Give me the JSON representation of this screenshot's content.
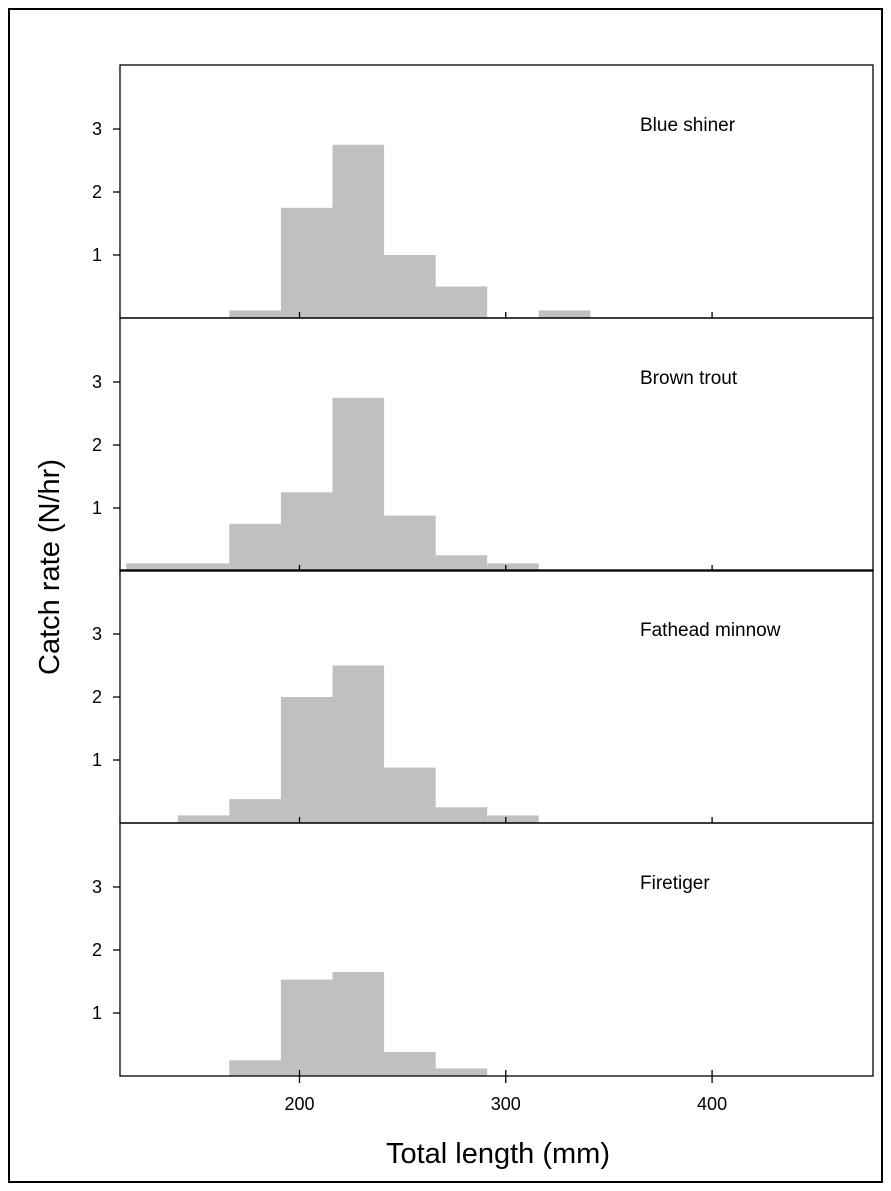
{
  "chart_data": {
    "type": "bar",
    "layout": "stacked-panels",
    "xlabel": "Total length (mm)",
    "ylabel": "Catch rate (N/hr)",
    "xlim": [
      113,
      478
    ],
    "ylim": [
      0,
      4
    ],
    "x_ticks": [
      200,
      300,
      400
    ],
    "y_ticks": [
      1,
      2,
      3
    ],
    "bin_width": 25,
    "bar_color": "#c0c0c0",
    "panels": [
      {
        "name": "Blue shiner",
        "bins": [
          {
            "x0": 166,
            "x1": 191,
            "value": 0.12
          },
          {
            "x0": 191,
            "x1": 216,
            "value": 1.75
          },
          {
            "x0": 216,
            "x1": 241,
            "value": 2.75
          },
          {
            "x0": 241,
            "x1": 266,
            "value": 1.0
          },
          {
            "x0": 266,
            "x1": 291,
            "value": 0.5
          },
          {
            "x0": 316,
            "x1": 341,
            "value": 0.12
          }
        ]
      },
      {
        "name": "Brown trout",
        "bins": [
          {
            "x0": 116,
            "x1": 141,
            "value": 0.12
          },
          {
            "x0": 141,
            "x1": 166,
            "value": 0.12
          },
          {
            "x0": 166,
            "x1": 191,
            "value": 0.75
          },
          {
            "x0": 191,
            "x1": 216,
            "value": 1.25
          },
          {
            "x0": 216,
            "x1": 241,
            "value": 2.75
          },
          {
            "x0": 241,
            "x1": 266,
            "value": 0.88
          },
          {
            "x0": 266,
            "x1": 291,
            "value": 0.25
          },
          {
            "x0": 291,
            "x1": 316,
            "value": 0.12
          }
        ]
      },
      {
        "name": "Fathead minnow",
        "bins": [
          {
            "x0": 141,
            "x1": 166,
            "value": 0.12
          },
          {
            "x0": 166,
            "x1": 191,
            "value": 0.38
          },
          {
            "x0": 191,
            "x1": 216,
            "value": 2.0
          },
          {
            "x0": 216,
            "x1": 241,
            "value": 2.5
          },
          {
            "x0": 241,
            "x1": 266,
            "value": 0.88
          },
          {
            "x0": 266,
            "x1": 291,
            "value": 0.25
          },
          {
            "x0": 291,
            "x1": 316,
            "value": 0.12
          }
        ]
      },
      {
        "name": "Firetiger",
        "bins": [
          {
            "x0": 166,
            "x1": 191,
            "value": 0.25
          },
          {
            "x0": 191,
            "x1": 216,
            "value": 1.53
          },
          {
            "x0": 216,
            "x1": 241,
            "value": 1.65
          },
          {
            "x0": 241,
            "x1": 266,
            "value": 0.38
          },
          {
            "x0": 266,
            "x1": 291,
            "value": 0.12
          }
        ]
      }
    ]
  }
}
